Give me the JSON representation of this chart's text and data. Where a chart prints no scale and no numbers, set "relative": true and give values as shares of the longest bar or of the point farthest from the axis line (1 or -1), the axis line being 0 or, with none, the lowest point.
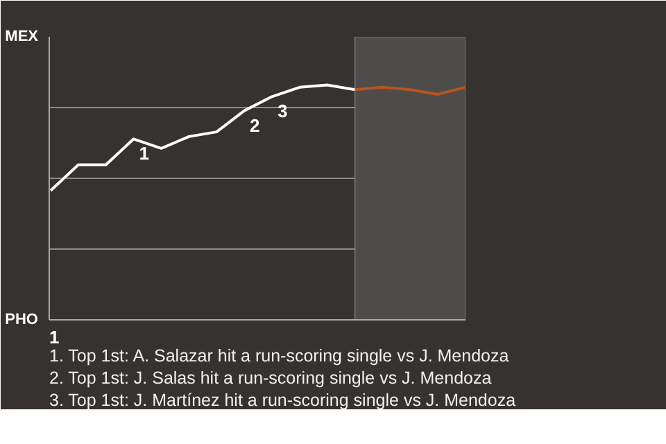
{
  "chart_data": {
    "type": "line",
    "relative": true,
    "categories": [
      null,
      null,
      null,
      null,
      null,
      null,
      null,
      null,
      null,
      null,
      null,
      null,
      null,
      null,
      null,
      null
    ],
    "grid": "y",
    "marker": "none",
    "line_style": "solid",
    "series": [
      {
        "color": "#ffffff",
        "values": [
          0.55,
          0.66,
          0.66,
          0.77,
          0.73,
          0.78,
          0.8,
          0.89,
          0.95,
          0.99,
          1,
          0.98,
          null,
          null,
          null,
          null
        ]
      },
      {
        "color": "#b5551f",
        "values": [
          null,
          null,
          null,
          null,
          null,
          null,
          null,
          null,
          null,
          null,
          null,
          0.98,
          0.99,
          0.98,
          0.96,
          0.99
        ]
      }
    ],
    "annotations": [
      "MEX",
      "PHO",
      "1",
      {
        "text": "1",
        "y": 0.77
      },
      {
        "text": "2",
        "y": 0.89
      },
      {
        "text": "3",
        "y": 0.95
      },
      "1. Top 1st: A. Salazar hit a run-scoring single vs J. Mendoza",
      "2. Top 1st: J. Salas hit a run-scoring single vs J. Mendoza",
      "3. Top 1st: J. Martínez hit a run-scoring single vs J. Mendoza"
    ]
  }
}
